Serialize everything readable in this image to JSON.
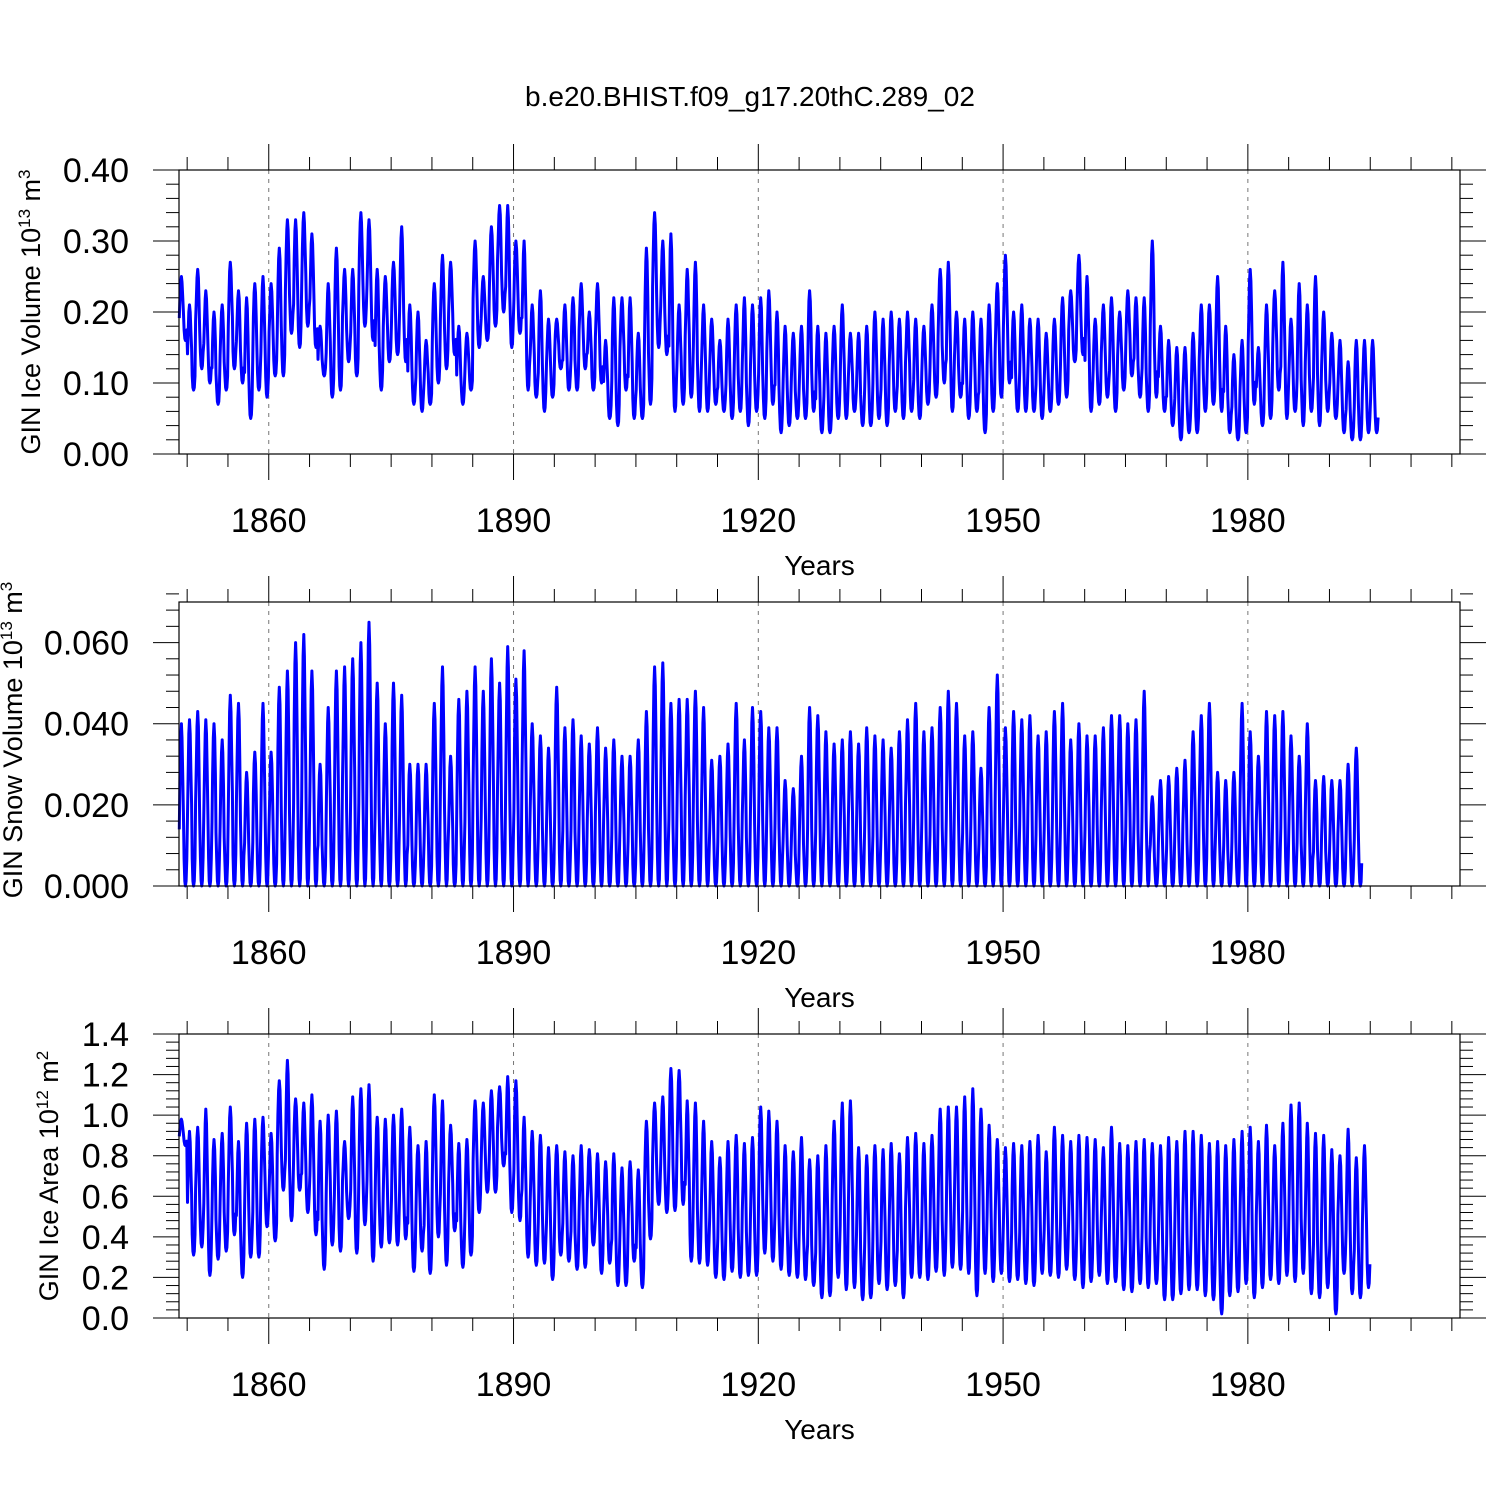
{
  "figure_title": "b.e20.BHIST.f09_g17.20thC.289_02",
  "line_color": "#0000ff",
  "chart_data": [
    {
      "type": "line",
      "id": "ice-volume",
      "title": "",
      "xlabel": "Years",
      "ylabel_parts": [
        "GIN Ice Volume 10",
        "13",
        " m",
        "3"
      ],
      "xlim": [
        1849,
        2006
      ],
      "ylim": [
        0,
        0.4
      ],
      "x_ticks": [
        1860,
        1890,
        1920,
        1950,
        1980
      ],
      "x_tick_labels": [
        "1860",
        "1890",
        "1920",
        "1950",
        "1980"
      ],
      "y_ticks": [
        0,
        0.1,
        0.2,
        0.3,
        0.4
      ],
      "y_tick_labels": [
        "0.00",
        "0.10",
        "0.20",
        "0.30",
        "0.40"
      ],
      "x_minor_step": 5,
      "y_minor_step": 0.02,
      "x_gridlines": [
        1860,
        1890,
        1920,
        1950,
        1980
      ],
      "series": [
        {
          "name": "GIN Ice Volume",
          "start_year": 1849.04,
          "step": 0.0833333,
          "annual_max": [
            0.25,
            0.21,
            0.26,
            0.23,
            0.2,
            0.21,
            0.27,
            0.23,
            0.22,
            0.24,
            0.25,
            0.24,
            0.29,
            0.33,
            0.33,
            0.34,
            0.31,
            0.18,
            0.24,
            0.29,
            0.26,
            0.26,
            0.34,
            0.33,
            0.26,
            0.25,
            0.27,
            0.32,
            0.21,
            0.2,
            0.16,
            0.24,
            0.28,
            0.27,
            0.18,
            0.17,
            0.3,
            0.25,
            0.32,
            0.35,
            0.35,
            0.3,
            0.3,
            0.21,
            0.23,
            0.19,
            0.19,
            0.21,
            0.22,
            0.24,
            0.2,
            0.24,
            0.16,
            0.22,
            0.22,
            0.22,
            0.17,
            0.29,
            0.34,
            0.3,
            0.31,
            0.21,
            0.26,
            0.27,
            0.21,
            0.19,
            0.16,
            0.19,
            0.21,
            0.22,
            0.21,
            0.22,
            0.23,
            0.2,
            0.18,
            0.17,
            0.18,
            0.23,
            0.18,
            0.17,
            0.18,
            0.21,
            0.17,
            0.17,
            0.18,
            0.2,
            0.19,
            0.2,
            0.19,
            0.2,
            0.19,
            0.18,
            0.21,
            0.26,
            0.27,
            0.2,
            0.19,
            0.2,
            0.19,
            0.21,
            0.24,
            0.28,
            0.2,
            0.21,
            0.19,
            0.19,
            0.17,
            0.19,
            0.22,
            0.23,
            0.28,
            0.25,
            0.19,
            0.21,
            0.22,
            0.2,
            0.23,
            0.22,
            0.22,
            0.3,
            0.18,
            0.16,
            0.15,
            0.15,
            0.17,
            0.21,
            0.21,
            0.25,
            0.18,
            0.14,
            0.16,
            0.26,
            0.15,
            0.21,
            0.23,
            0.27,
            0.19,
            0.24,
            0.21,
            0.25,
            0.2,
            0.17,
            0.16,
            0.13,
            0.16,
            0.16,
            0.16
          ],
          "annual_min": [
            0.16,
            0.09,
            0.12,
            0.1,
            0.07,
            0.09,
            0.12,
            0.1,
            0.05,
            0.09,
            0.08,
            0.11,
            0.11,
            0.17,
            0.15,
            0.18,
            0.15,
            0.11,
            0.08,
            0.09,
            0.13,
            0.11,
            0.18,
            0.16,
            0.09,
            0.13,
            0.14,
            0.13,
            0.07,
            0.06,
            0.07,
            0.1,
            0.12,
            0.14,
            0.07,
            0.09,
            0.15,
            0.16,
            0.18,
            0.2,
            0.15,
            0.17,
            0.09,
            0.08,
            0.06,
            0.08,
            0.12,
            0.09,
            0.09,
            0.12,
            0.09,
            0.1,
            0.05,
            0.04,
            0.09,
            0.05,
            0.05,
            0.07,
            0.15,
            0.14,
            0.06,
            0.07,
            0.08,
            0.06,
            0.06,
            0.07,
            0.06,
            0.05,
            0.06,
            0.04,
            0.06,
            0.05,
            0.07,
            0.03,
            0.04,
            0.05,
            0.05,
            0.06,
            0.03,
            0.03,
            0.05,
            0.05,
            0.06,
            0.04,
            0.04,
            0.05,
            0.04,
            0.06,
            0.05,
            0.06,
            0.05,
            0.07,
            0.08,
            0.1,
            0.06,
            0.08,
            0.05,
            0.06,
            0.03,
            0.06,
            0.08,
            0.1,
            0.06,
            0.06,
            0.06,
            0.05,
            0.06,
            0.07,
            0.08,
            0.13,
            0.14,
            0.06,
            0.07,
            0.08,
            0.06,
            0.09,
            0.11,
            0.08,
            0.06,
            0.08,
            0.06,
            0.04,
            0.02,
            0.03,
            0.03,
            0.06,
            0.07,
            0.06,
            0.03,
            0.02,
            0.03,
            0.07,
            0.04,
            0.05,
            0.09,
            0.05,
            0.06,
            0.04,
            0.06,
            0.04,
            0.06,
            0.05,
            0.03,
            0.02,
            0.02,
            0.03,
            0.03
          ]
        }
      ]
    },
    {
      "type": "line",
      "id": "snow-volume",
      "title": "",
      "xlabel": "Years",
      "ylabel_parts": [
        "GIN Snow Volume 10",
        "13",
        " m",
        "3"
      ],
      "xlim": [
        1849,
        2006
      ],
      "ylim": [
        0,
        0.07
      ],
      "x_ticks": [
        1860,
        1890,
        1920,
        1950,
        1980
      ],
      "x_tick_labels": [
        "1860",
        "1890",
        "1920",
        "1950",
        "1980"
      ],
      "y_ticks": [
        0,
        0.02,
        0.04,
        0.06
      ],
      "y_tick_labels": [
        "0.000",
        "0.020",
        "0.040",
        "0.060"
      ],
      "x_minor_step": 5,
      "y_minor_step": 0.004,
      "x_gridlines": [
        1860,
        1890,
        1920,
        1950,
        1980
      ],
      "series": [
        {
          "name": "GIN Snow Volume",
          "start_year": 1849.04,
          "step": 0.0833333,
          "annual_max": [
            0.04,
            0.041,
            0.043,
            0.041,
            0.04,
            0.036,
            0.047,
            0.045,
            0.028,
            0.033,
            0.045,
            0.033,
            0.049,
            0.053,
            0.06,
            0.062,
            0.053,
            0.03,
            0.044,
            0.053,
            0.054,
            0.056,
            0.06,
            0.065,
            0.05,
            0.04,
            0.05,
            0.047,
            0.03,
            0.03,
            0.03,
            0.045,
            0.054,
            0.032,
            0.046,
            0.048,
            0.054,
            0.048,
            0.056,
            0.05,
            0.059,
            0.051,
            0.058,
            0.04,
            0.037,
            0.034,
            0.049,
            0.039,
            0.041,
            0.037,
            0.035,
            0.039,
            0.034,
            0.036,
            0.032,
            0.032,
            0.036,
            0.043,
            0.054,
            0.055,
            0.045,
            0.046,
            0.046,
            0.048,
            0.044,
            0.031,
            0.032,
            0.035,
            0.045,
            0.036,
            0.044,
            0.043,
            0.039,
            0.039,
            0.026,
            0.024,
            0.032,
            0.044,
            0.042,
            0.038,
            0.035,
            0.036,
            0.038,
            0.035,
            0.039,
            0.037,
            0.036,
            0.034,
            0.038,
            0.041,
            0.045,
            0.038,
            0.039,
            0.044,
            0.048,
            0.045,
            0.037,
            0.038,
            0.029,
            0.044,
            0.052,
            0.039,
            0.043,
            0.041,
            0.042,
            0.037,
            0.038,
            0.043,
            0.045,
            0.036,
            0.04,
            0.037,
            0.037,
            0.039,
            0.042,
            0.042,
            0.04,
            0.041,
            0.048,
            0.022,
            0.026,
            0.027,
            0.029,
            0.031,
            0.038,
            0.042,
            0.045,
            0.028,
            0.026,
            0.028,
            0.045,
            0.038,
            0.032,
            0.043,
            0.042,
            0.043,
            0.037,
            0.032,
            0.04,
            0.026,
            0.027,
            0.026,
            0.026,
            0.03,
            0.034
          ],
          "annual_min": [
            0.0,
            0.0,
            0.0,
            0.0,
            0.0,
            0.0,
            0.0,
            0.0,
            0.0,
            0.0,
            0.0,
            0.0,
            0.0,
            0.0,
            0.0,
            0.0,
            0.0,
            0.0,
            0.0,
            0.0,
            0.0,
            0.0,
            0.0,
            0.0,
            0.0,
            0.0,
            0.0,
            0.0,
            0.0,
            0.0,
            0.0,
            0.0,
            0.0,
            0.0,
            0.0,
            0.0,
            0.0,
            0.0,
            0.0,
            0.0,
            0.0,
            0.0,
            0.0,
            0.0,
            0.0,
            0.0,
            0.0,
            0.0,
            0.0,
            0.0,
            0.0,
            0.0,
            0.0,
            0.0,
            0.0,
            0.0,
            0.0,
            0.0,
            0.0,
            0.0,
            0.0,
            0.0,
            0.0,
            0.0,
            0.0,
            0.0,
            0.0,
            0.0,
            0.0,
            0.0,
            0.0,
            0.0,
            0.0,
            0.0,
            0.0,
            0.0,
            0.0,
            0.0,
            0.0,
            0.0,
            0.0,
            0.0,
            0.0,
            0.0,
            0.0,
            0.0,
            0.0,
            0.0,
            0.0,
            0.0,
            0.0,
            0.0,
            0.0,
            0.0,
            0.0,
            0.0,
            0.0,
            0.0,
            0.0,
            0.0,
            0.0,
            0.0,
            0.0,
            0.0,
            0.0,
            0.0,
            0.0,
            0.0,
            0.0,
            0.0,
            0.0,
            0.0,
            0.0,
            0.0,
            0.0,
            0.0,
            0.0,
            0.0,
            0.0,
            0.0,
            0.0,
            0.0,
            0.0,
            0.0,
            0.0,
            0.0,
            0.0,
            0.0,
            0.0,
            0.0,
            0.0,
            0.0,
            0.0,
            0.0,
            0.0,
            0.0,
            0.0,
            0.0,
            0.0,
            0.0,
            0.0,
            0.0,
            0.0,
            0.0,
            0.0,
            0.0,
            0.0
          ]
        }
      ]
    },
    {
      "type": "line",
      "id": "ice-area",
      "title": "",
      "xlabel": "Years",
      "ylabel_parts": [
        "GIN Ice Area 10",
        "12",
        " m",
        "2"
      ],
      "xlim": [
        1849,
        2006
      ],
      "ylim": [
        0,
        1.4
      ],
      "x_ticks": [
        1860,
        1890,
        1920,
        1950,
        1980
      ],
      "x_tick_labels": [
        "1860",
        "1890",
        "1920",
        "1950",
        "1980"
      ],
      "y_ticks": [
        0,
        0.2,
        0.4,
        0.6,
        0.8,
        1.0,
        1.2,
        1.4
      ],
      "y_tick_labels": [
        "0.0",
        "0.2",
        "0.4",
        "0.6",
        "0.8",
        "1.0",
        "1.2",
        "1.4"
      ],
      "x_minor_step": 5,
      "y_minor_step": 0.04,
      "x_gridlines": [
        1860,
        1890,
        1920,
        1950,
        1980
      ],
      "series": [
        {
          "name": "GIN Ice Area",
          "start_year": 1849.04,
          "step": 0.0833333,
          "annual_max": [
            0.98,
            0.92,
            0.94,
            1.03,
            0.88,
            0.91,
            1.04,
            0.87,
            0.96,
            0.98,
            0.99,
            0.91,
            1.17,
            1.27,
            1.08,
            1.06,
            1.1,
            0.97,
            1.0,
            1.02,
            0.87,
            1.09,
            1.13,
            1.15,
            0.99,
            0.98,
            1.0,
            1.03,
            0.94,
            0.85,
            0.87,
            1.1,
            1.07,
            0.95,
            0.86,
            0.88,
            1.07,
            1.06,
            1.12,
            1.14,
            1.19,
            1.17,
            0.99,
            0.92,
            0.9,
            0.84,
            0.85,
            0.82,
            0.8,
            0.85,
            0.83,
            0.81,
            0.77,
            0.81,
            0.74,
            0.77,
            0.73,
            0.97,
            1.06,
            1.09,
            1.23,
            1.22,
            1.07,
            1.06,
            0.97,
            0.87,
            0.79,
            0.87,
            0.9,
            0.86,
            0.89,
            1.04,
            1.02,
            0.97,
            0.85,
            0.82,
            0.89,
            0.78,
            0.8,
            0.85,
            0.97,
            1.06,
            1.07,
            0.84,
            0.8,
            0.85,
            0.83,
            0.86,
            0.81,
            0.89,
            0.91,
            0.86,
            0.9,
            1.03,
            1.04,
            1.04,
            1.09,
            1.13,
            1.03,
            0.95,
            0.88,
            0.84,
            0.86,
            0.85,
            0.87,
            0.9,
            0.82,
            0.94,
            0.9,
            0.87,
            0.9,
            0.89,
            0.88,
            0.84,
            0.94,
            0.86,
            0.85,
            0.87,
            0.88,
            0.86,
            0.85,
            0.89,
            0.87,
            0.92,
            0.92,
            0.9,
            0.86,
            0.87,
            0.85,
            0.88,
            0.92,
            0.94,
            0.87,
            0.95,
            0.85,
            0.96,
            1.05,
            1.06,
            0.96,
            0.91,
            0.9,
            0.83,
            0.8,
            0.93,
            0.79,
            0.85
          ],
          "annual_min": [
            0.85,
            0.31,
            0.35,
            0.21,
            0.29,
            0.33,
            0.41,
            0.2,
            0.3,
            0.3,
            0.45,
            0.38,
            0.63,
            0.48,
            0.63,
            0.52,
            0.41,
            0.24,
            0.36,
            0.33,
            0.49,
            0.32,
            0.46,
            0.28,
            0.35,
            0.37,
            0.36,
            0.39,
            0.23,
            0.33,
            0.22,
            0.4,
            0.26,
            0.43,
            0.25,
            0.31,
            0.52,
            0.62,
            0.62,
            0.75,
            0.52,
            0.48,
            0.3,
            0.26,
            0.27,
            0.19,
            0.31,
            0.28,
            0.24,
            0.25,
            0.36,
            0.22,
            0.27,
            0.16,
            0.16,
            0.28,
            0.15,
            0.39,
            0.56,
            0.52,
            0.53,
            0.56,
            0.28,
            0.27,
            0.26,
            0.2,
            0.19,
            0.23,
            0.2,
            0.21,
            0.21,
            0.32,
            0.28,
            0.24,
            0.21,
            0.2,
            0.19,
            0.16,
            0.1,
            0.11,
            0.2,
            0.14,
            0.15,
            0.09,
            0.1,
            0.17,
            0.14,
            0.16,
            0.1,
            0.2,
            0.2,
            0.19,
            0.23,
            0.21,
            0.25,
            0.24,
            0.22,
            0.11,
            0.22,
            0.18,
            0.22,
            0.18,
            0.19,
            0.17,
            0.16,
            0.22,
            0.21,
            0.2,
            0.24,
            0.19,
            0.15,
            0.18,
            0.21,
            0.17,
            0.18,
            0.14,
            0.13,
            0.17,
            0.15,
            0.17,
            0.09,
            0.09,
            0.12,
            0.14,
            0.14,
            0.11,
            0.09,
            0.02,
            0.11,
            0.13,
            0.17,
            0.1,
            0.15,
            0.19,
            0.17,
            0.21,
            0.18,
            0.22,
            0.12,
            0.1,
            0.15,
            0.02,
            0.22,
            0.12,
            0.1,
            0.15,
            0.08
          ]
        }
      ]
    }
  ]
}
